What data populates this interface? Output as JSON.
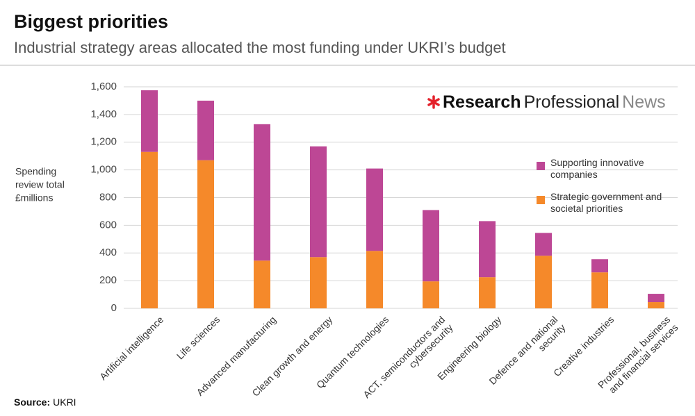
{
  "header": {
    "title": "Biggest priorities",
    "subtitle": "Industrial strategy areas allocated the most funding under UKRI’s budget"
  },
  "logo": {
    "bold": "Research",
    "regular": "Professional",
    "light": "News"
  },
  "chart_data": {
    "type": "stacked-bar",
    "y_label": [
      "Spending",
      "review total",
      "£millions"
    ],
    "categories": [
      "Artificial intelligence",
      "Life sciences",
      "Advanced manufacturing",
      "Clean growth and energy",
      "Quantum technologies",
      "ACT, semiconductors and cybersecurity",
      "Engineering biology",
      "Defence and national security",
      "Creative industries",
      "Professional, business and financial services"
    ],
    "series": [
      {
        "name": "Strategic government and societal priorities",
        "color": "#f5892a",
        "values": [
          1130,
          1070,
          345,
          370,
          415,
          195,
          225,
          380,
          260,
          45
        ]
      },
      {
        "name": "Supporting innovative companies",
        "color": "#bd4795",
        "values": [
          445,
          430,
          985,
          800,
          595,
          515,
          405,
          165,
          95,
          60
        ]
      }
    ],
    "ylim": [
      0,
      1600
    ],
    "yticks": [
      0,
      200,
      400,
      600,
      800,
      {
        "value": 1000,
        "label": "1,000"
      },
      {
        "value": 1200,
        "label": "1,200"
      },
      {
        "value": 1400,
        "label": "1,400"
      },
      {
        "value": 1600,
        "label": "1,600"
      }
    ],
    "grid": true
  },
  "source": {
    "label": "Source:",
    "text": "UKRI"
  }
}
